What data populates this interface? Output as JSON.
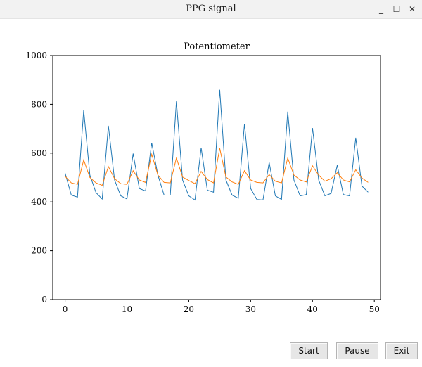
{
  "window": {
    "title": "PPG signal",
    "minimize_glyph": "_",
    "maximize_glyph": "☐",
    "close_glyph": "✕"
  },
  "chart_data": {
    "type": "line",
    "title": "Potentiometer",
    "xlim": [
      -2,
      51
    ],
    "ylim": [
      0,
      1000
    ],
    "xticks": [
      0,
      10,
      20,
      30,
      40,
      50
    ],
    "yticks": [
      0,
      200,
      400,
      600,
      800,
      1000
    ],
    "grid": false,
    "legend": "none",
    "series": [
      {
        "color": "#1f77b4",
        "x": [
          0,
          1,
          2,
          3,
          4,
          5,
          6,
          7,
          8,
          9,
          10,
          11,
          12,
          13,
          14,
          15,
          16,
          17,
          18,
          19,
          20,
          21,
          22,
          23,
          24,
          25,
          26,
          27,
          28,
          29,
          30,
          31,
          32,
          33,
          34,
          35,
          36,
          37,
          38,
          39,
          40,
          41,
          42,
          43,
          44,
          45,
          46,
          47,
          48,
          49
        ],
        "y": [
          518,
          428,
          420,
          776,
          510,
          438,
          412,
          712,
          490,
          425,
          412,
          598,
          455,
          445,
          642,
          510,
          428,
          428,
          812,
          490,
          425,
          408,
          622,
          448,
          440,
          860,
          490,
          428,
          415,
          720,
          455,
          410,
          408,
          562,
          425,
          410,
          770,
          490,
          425,
          430,
          703,
          490,
          425,
          435,
          550,
          430,
          425,
          663,
          465,
          440
        ]
      },
      {
        "color": "#ff7f0e",
        "x": [
          0,
          1,
          2,
          3,
          4,
          5,
          6,
          7,
          8,
          9,
          10,
          11,
          12,
          13,
          14,
          15,
          16,
          17,
          18,
          19,
          20,
          21,
          22,
          23,
          24,
          25,
          26,
          27,
          28,
          29,
          30,
          31,
          32,
          33,
          34,
          35,
          36,
          37,
          38,
          39,
          40,
          41,
          42,
          43,
          44,
          45,
          46,
          47,
          48,
          49
        ],
        "y": [
          505,
          478,
          472,
          572,
          500,
          478,
          468,
          545,
          495,
          475,
          472,
          528,
          490,
          480,
          595,
          510,
          480,
          478,
          580,
          502,
          488,
          475,
          525,
          492,
          478,
          620,
          502,
          482,
          472,
          528,
          490,
          480,
          478,
          512,
          485,
          478,
          580,
          510,
          490,
          482,
          548,
          510,
          485,
          495,
          520,
          490,
          482,
          532,
          498,
          480
        ]
      }
    ]
  },
  "buttons": {
    "start": "Start",
    "pause": "Pause",
    "exit": "Exit"
  }
}
